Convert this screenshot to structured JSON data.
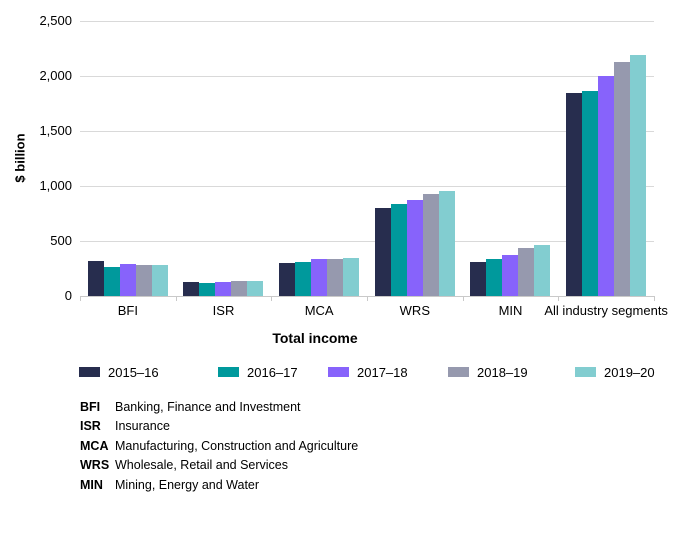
{
  "colors": {
    "gridline": "#d9d9d9",
    "axis_line": "#c9c9c9",
    "text": "#000000",
    "background": "#ffffff"
  },
  "chart_data": {
    "type": "bar",
    "title": "",
    "xlabel": "Total income",
    "ylabel": "$ billion",
    "ylim": [
      0,
      2500
    ],
    "ytick_interval": 500,
    "grid": "horizontal",
    "legend_position": "bottom",
    "yticks": [
      {
        "value": 2500,
        "label": "2,500"
      },
      {
        "value": 2000,
        "label": "2,000"
      },
      {
        "value": 1500,
        "label": "1,500"
      },
      {
        "value": 1000,
        "label": "1,000"
      },
      {
        "value": 500,
        "label": "500"
      },
      {
        "value": 0,
        "label": "0"
      }
    ],
    "categories": [
      "BFI",
      "ISR",
      "MCA",
      "WRS",
      "MIN",
      "All industry segments"
    ],
    "series": [
      {
        "name": "2015–16",
        "color": "#272D4E",
        "values": [
          315,
          125,
          300,
          800,
          310,
          1845
        ]
      },
      {
        "name": "2016–17",
        "color": "#00999C",
        "values": [
          265,
          115,
          305,
          840,
          335,
          1860
        ]
      },
      {
        "name": "2017–18",
        "color": "#8763FB",
        "values": [
          295,
          125,
          335,
          875,
          370,
          2000
        ]
      },
      {
        "name": "2018–19",
        "color": "#9699AE",
        "values": [
          285,
          140,
          335,
          930,
          440,
          2130
        ]
      },
      {
        "name": "2019–20",
        "color": "#82CDD0",
        "values": [
          285,
          135,
          350,
          955,
          465,
          2190
        ]
      }
    ],
    "footnotes": [
      {
        "abbr": "BFI",
        "text": "Banking, Finance and Investment"
      },
      {
        "abbr": "ISR",
        "text": "Insurance"
      },
      {
        "abbr": "MCA",
        "text": "Manufacturing, Construction and Agriculture"
      },
      {
        "abbr": "WRS",
        "text": "Wholesale, Retail and Services"
      },
      {
        "abbr": "MIN",
        "text": "Mining, Energy and Water"
      }
    ]
  }
}
